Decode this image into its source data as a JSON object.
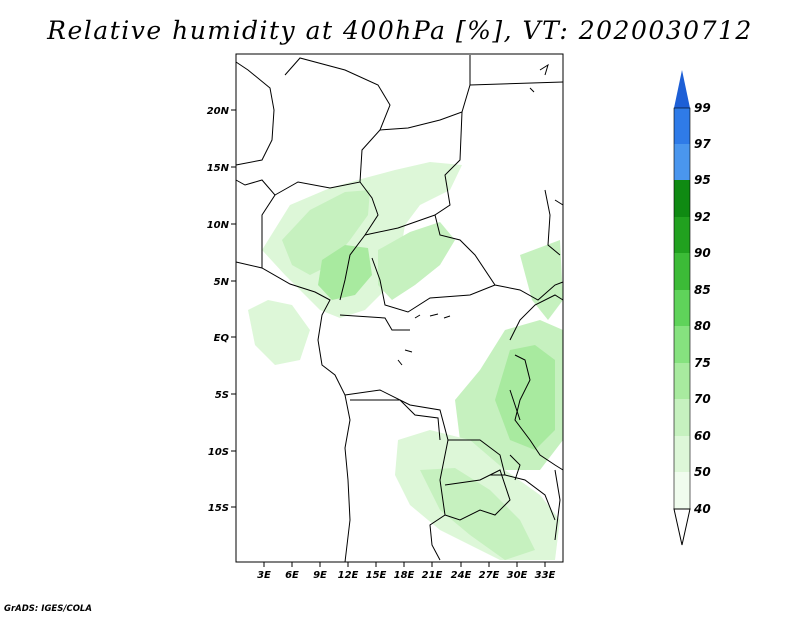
{
  "title": "Relative humidity at 400hPa [%], VT: 2020030712",
  "credit": "GrADS: IGES/COLA",
  "lat_ticks": [
    "20N",
    "15N",
    "10N",
    "5N",
    "EQ",
    "5S",
    "10S",
    "15S"
  ],
  "lon_ticks": [
    "3E",
    "6E",
    "9E",
    "12E",
    "15E",
    "18E",
    "21E",
    "24E",
    "27E",
    "30E",
    "33E"
  ],
  "colorbar": {
    "levels": [
      "99",
      "97",
      "95",
      "92",
      "90",
      "85",
      "80",
      "75",
      "70",
      "60",
      "50",
      "40"
    ],
    "colors": [
      "#1d5fd6",
      "#2f7be8",
      "#4a96ee",
      "#0f8a12",
      "#21a11f",
      "#3cbb37",
      "#5fd35a",
      "#86e27f",
      "#a8ea9f",
      "#c6f1bf",
      "#ddf7d8",
      "#f0fcee"
    ]
  }
}
